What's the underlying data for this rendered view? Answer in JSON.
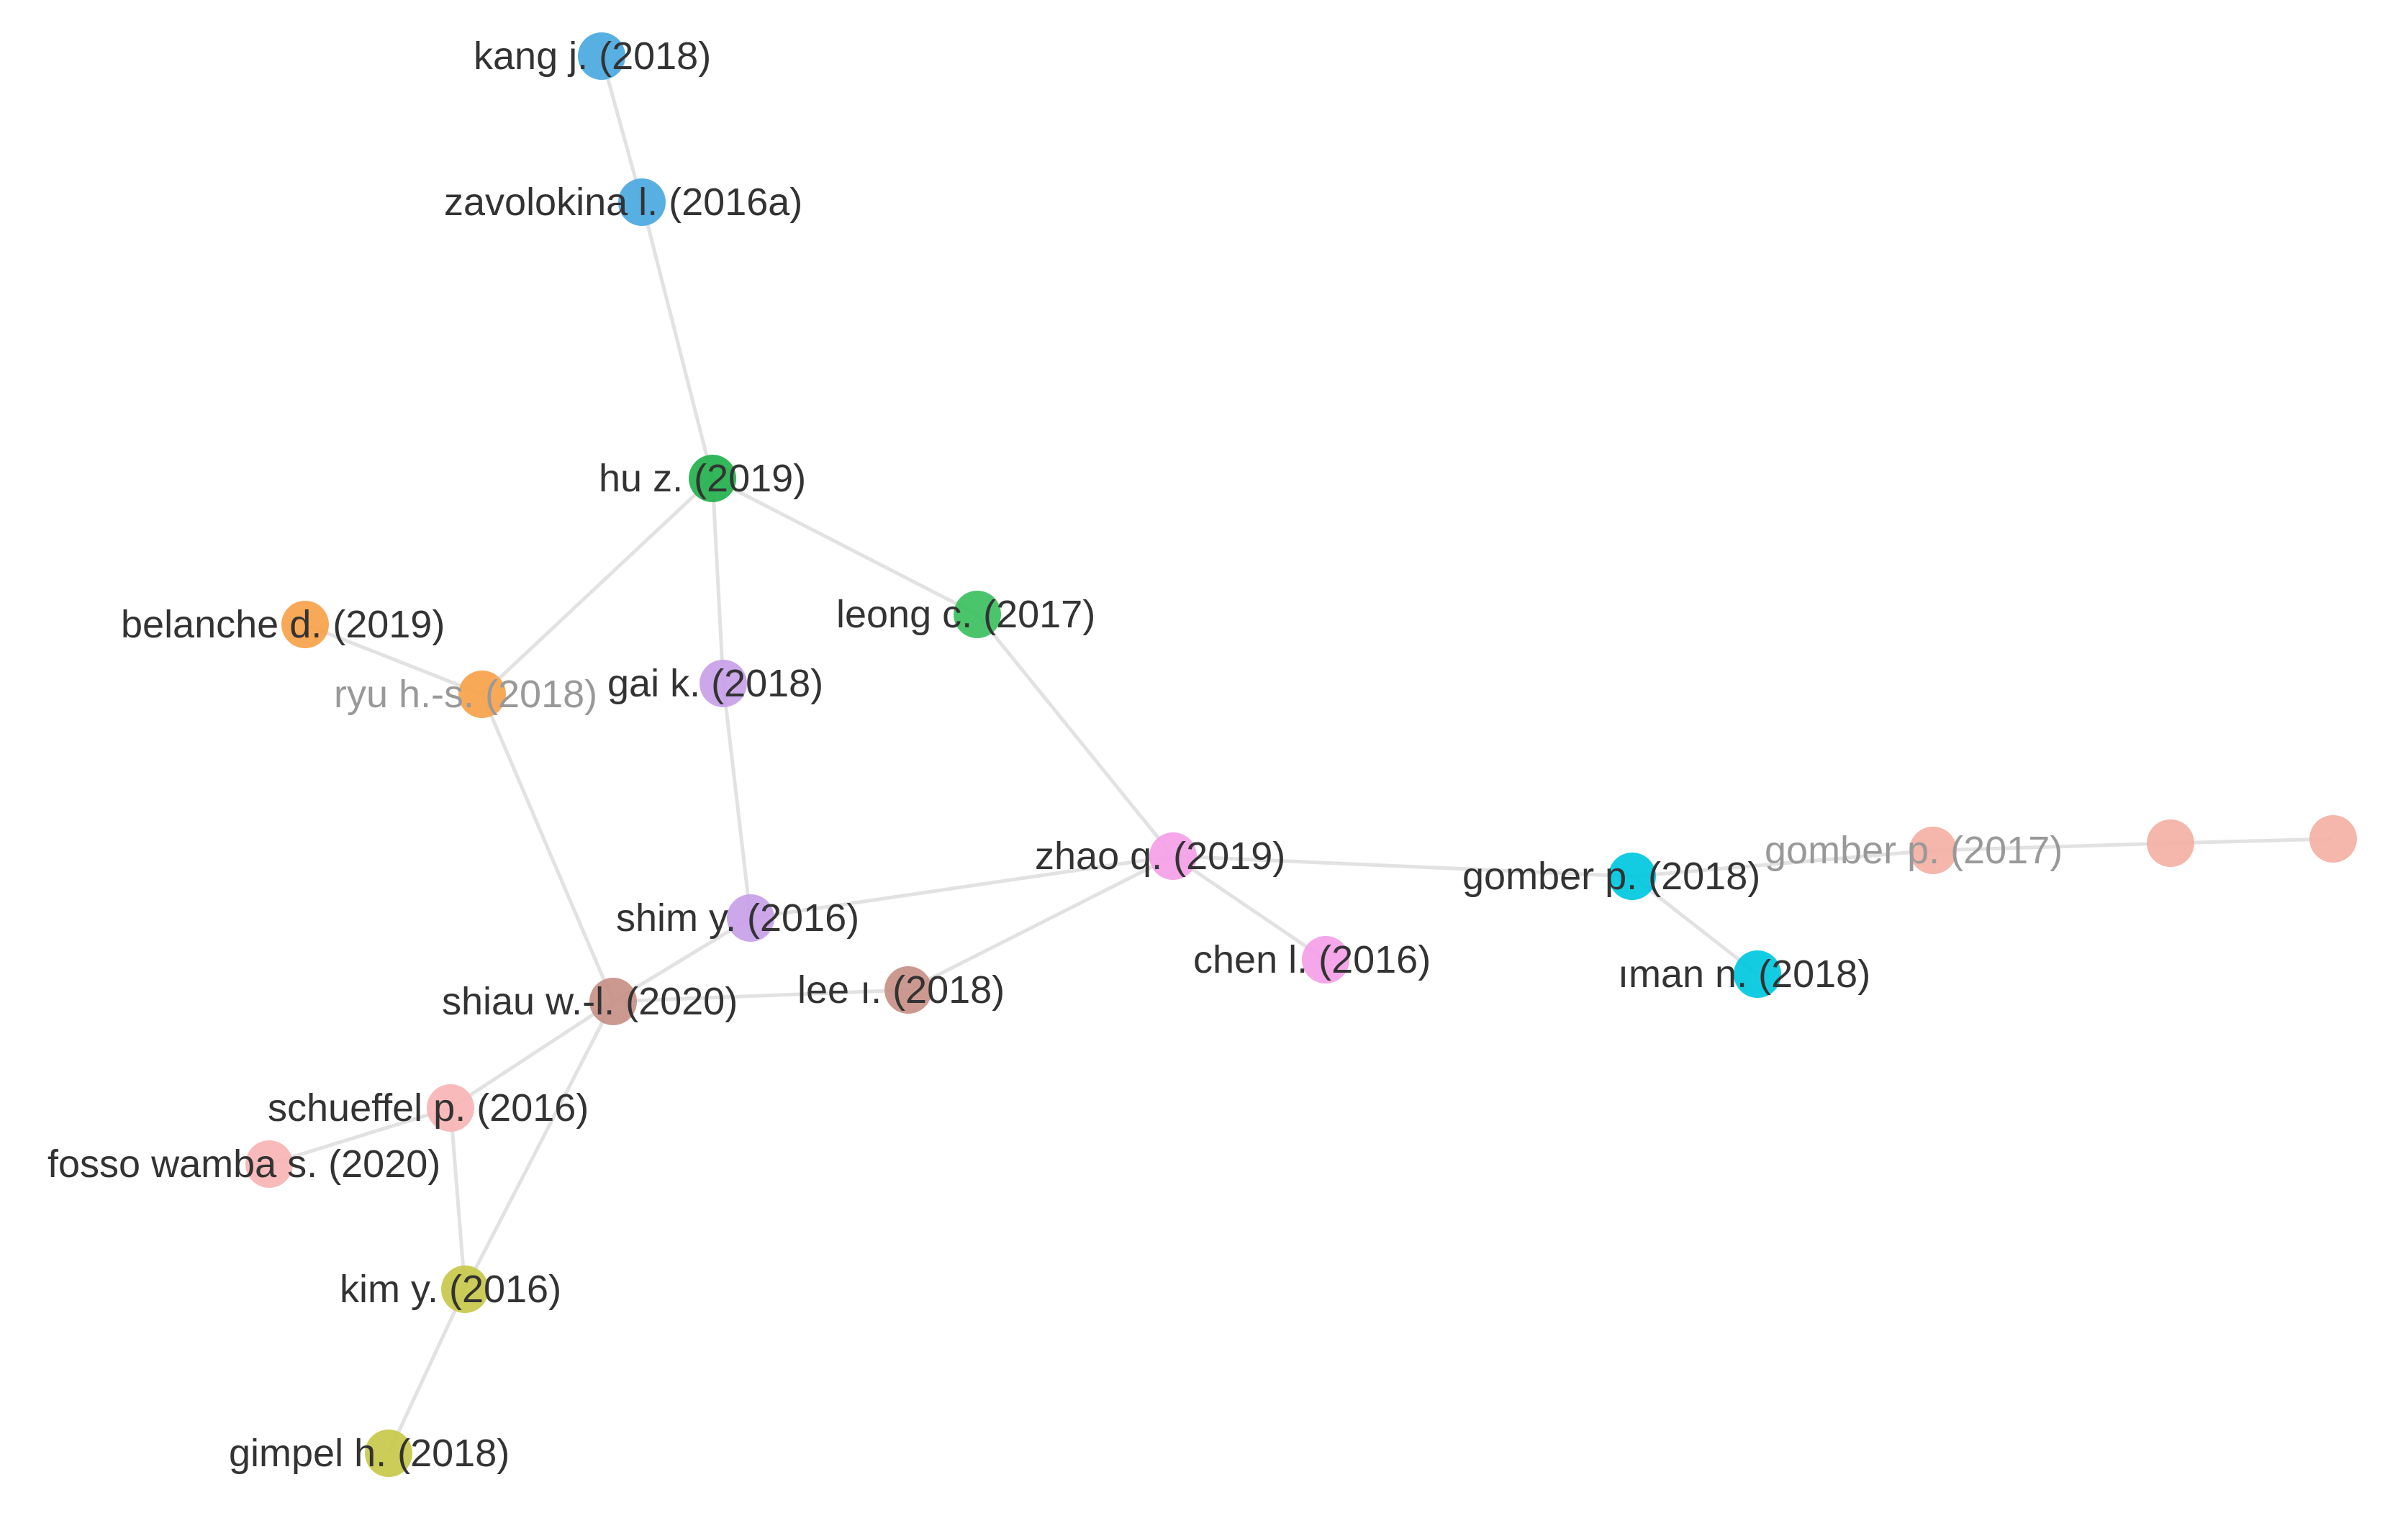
{
  "network": {
    "nodes": [
      {
        "id": "kang",
        "label": "kang j. (2018)",
        "color": "#4aa8e0"
      },
      {
        "id": "zavolokina",
        "label": "zavolokina l. (2016a)",
        "color": "#4aa8e0"
      },
      {
        "id": "hu",
        "label": "hu z. (2019)",
        "color": "#22b14c"
      },
      {
        "id": "leong",
        "label": "leong c. (2017)",
        "color": "#3cc060"
      },
      {
        "id": "belanche",
        "label": "belanche d. (2019)",
        "color": "#f7a24a"
      },
      {
        "id": "ryu",
        "label": "ryu h.-s. (2018)",
        "color": "#f7a24a",
        "faded": true
      },
      {
        "id": "gai",
        "label": "gai k. (2018)",
        "color": "#c8a0e8"
      },
      {
        "id": "zhao",
        "label": "zhao q. (2019)",
        "color": "#f4a0e8"
      },
      {
        "id": "gomber2018",
        "label": "gomber p. (2018)",
        "color": "#00c8e0"
      },
      {
        "id": "gomber2017",
        "label": "gomber p. (2017)",
        "color": "#f4b0a4",
        "faded": true
      },
      {
        "id": "extra1",
        "label": "",
        "color": "#f4b0a4"
      },
      {
        "id": "extra2",
        "label": "",
        "color": "#f4b0a4"
      },
      {
        "id": "shim",
        "label": "shim y. (2016)",
        "color": "#c8a0e8"
      },
      {
        "id": "chen",
        "label": "chen l. (2016)",
        "color": "#f4a0e8"
      },
      {
        "id": "iman",
        "label": "ıman n. (2018)",
        "color": "#00c8e0"
      },
      {
        "id": "shiau",
        "label": "shiau w.-l. (2020)",
        "color": "#c89088"
      },
      {
        "id": "lee",
        "label": "lee ı. (2018)",
        "color": "#c89088"
      },
      {
        "id": "schueffel",
        "label": "schueffel p. (2016)",
        "color": "#f7b4b4"
      },
      {
        "id": "fosso",
        "label": "fosso wamba s. (2020)",
        "color": "#f7b4b4"
      },
      {
        "id": "kim",
        "label": "kim y. (2016)",
        "color": "#c8c84a"
      },
      {
        "id": "gimpel",
        "label": "gimpel h. (2018)",
        "color": "#c8c84a"
      }
    ],
    "edges": [
      [
        "kang",
        "zavolokina"
      ],
      [
        "zavolokina",
        "hu"
      ],
      [
        "hu",
        "ryu"
      ],
      [
        "hu",
        "gai"
      ],
      [
        "hu",
        "leong"
      ],
      [
        "belanche",
        "ryu"
      ],
      [
        "ryu",
        "shiau"
      ],
      [
        "gai",
        "shim"
      ],
      [
        "leong",
        "zhao"
      ],
      [
        "shim",
        "zhao"
      ],
      [
        "shim",
        "shiau"
      ],
      [
        "zhao",
        "lee"
      ],
      [
        "zhao",
        "chen"
      ],
      [
        "zhao",
        "gomber2018"
      ],
      [
        "gomber2018",
        "iman"
      ],
      [
        "gomber2018",
        "gomber2017"
      ],
      [
        "gomber2017",
        "extra1"
      ],
      [
        "extra1",
        "extra2"
      ],
      [
        "shiau",
        "lee"
      ],
      [
        "shiau",
        "schueffel"
      ],
      [
        "shiau",
        "kim"
      ],
      [
        "schueffel",
        "fosso"
      ],
      [
        "schueffel",
        "kim"
      ],
      [
        "kim",
        "gimpel"
      ]
    ]
  }
}
